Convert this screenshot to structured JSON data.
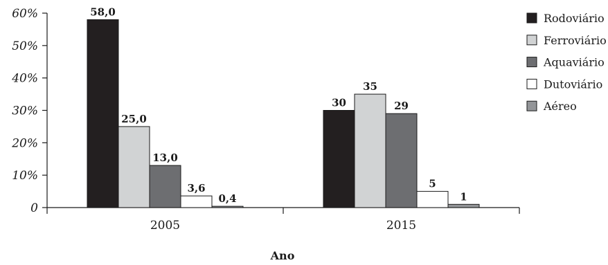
{
  "chart_data": {
    "type": "bar",
    "title": "",
    "xlabel": "Ano",
    "ylabel": "",
    "categories": [
      "2005",
      "2015"
    ],
    "ylim": [
      0,
      60
    ],
    "y_ticks": [
      "0",
      "10%",
      "20%",
      "30%",
      "40%",
      "50%",
      "60%"
    ],
    "y_tick_values": [
      0,
      10,
      20,
      30,
      40,
      50,
      60
    ],
    "legend_position": "right",
    "grid": false,
    "series": [
      {
        "name": "Rodoviário",
        "color": "#231f20",
        "values": [
          58.0,
          30
        ],
        "labels": [
          "58,0",
          "30"
        ]
      },
      {
        "name": "Ferroviário",
        "color": "#d1d3d4",
        "values": [
          25.0,
          35
        ],
        "labels": [
          "25,0",
          "35"
        ]
      },
      {
        "name": "Aquaviário",
        "color": "#6d6e71",
        "values": [
          13.0,
          29
        ],
        "labels": [
          "13,0",
          "29"
        ]
      },
      {
        "name": "Dutoviário",
        "color": "#ffffff",
        "values": [
          3.6,
          5
        ],
        "labels": [
          "3,6",
          "5"
        ]
      },
      {
        "name": "Aéreo",
        "color": "#939598",
        "values": [
          0.4,
          1
        ],
        "labels": [
          "0,4",
          "1"
        ]
      }
    ]
  }
}
